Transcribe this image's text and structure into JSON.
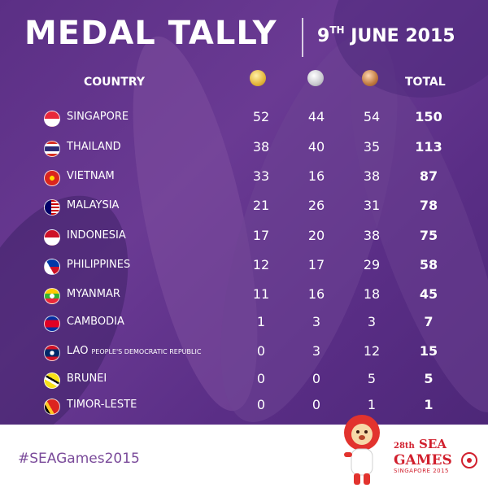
{
  "title": "MEDAL TALLY",
  "date": {
    "day": "9",
    "suffix": "TH",
    "rest": "JUNE 2015"
  },
  "headers": {
    "country": "COUNTRY",
    "total": "TOTAL"
  },
  "medal_icons": [
    "gold-medal-icon",
    "silver-medal-icon",
    "bronze-medal-icon"
  ],
  "colors": {
    "background": "#5b2f85",
    "accent": "#d1202e",
    "text": "#ffffff"
  },
  "rows": [
    {
      "country": "SINGAPORE",
      "gold": "52",
      "silver": "44",
      "bronze": "54",
      "total": "150",
      "flag": "singapore-flag-icon"
    },
    {
      "country": "THAILAND",
      "gold": "38",
      "silver": "40",
      "bronze": "35",
      "total": "113",
      "flag": "thailand-flag-icon"
    },
    {
      "country": "VIETNAM",
      "gold": "33",
      "silver": "16",
      "bronze": "38",
      "total": "87",
      "flag": "vietnam-flag-icon"
    },
    {
      "country": "MALAYSIA",
      "gold": "21",
      "silver": "26",
      "bronze": "31",
      "total": "78",
      "flag": "malaysia-flag-icon"
    },
    {
      "country": "INDONESIA",
      "gold": "17",
      "silver": "20",
      "bronze": "38",
      "total": "75",
      "flag": "indonesia-flag-icon"
    },
    {
      "country": "PHILIPPINES",
      "gold": "12",
      "silver": "17",
      "bronze": "29",
      "total": "58",
      "flag": "philippines-flag-icon"
    },
    {
      "country": "MYANMAR",
      "gold": "11",
      "silver": "16",
      "bronze": "18",
      "total": "45",
      "flag": "myanmar-flag-icon"
    },
    {
      "country": "CAMBODIA",
      "gold": "1",
      "silver": "3",
      "bronze": "3",
      "total": "7",
      "flag": "cambodia-flag-icon"
    },
    {
      "country": "LAO",
      "country_sub": "PEOPLE'S DEMOCRATIC REPUBLIC",
      "gold": "0",
      "silver": "3",
      "bronze": "12",
      "total": "15",
      "flag": "laos-flag-icon"
    },
    {
      "country": "BRUNEI",
      "gold": "0",
      "silver": "0",
      "bronze": "5",
      "total": "5",
      "flag": "brunei-flag-icon"
    },
    {
      "country": "TIMOR-LESTE",
      "gold": "0",
      "silver": "0",
      "bronze": "1",
      "total": "1",
      "flag": "timor-leste-flag-icon"
    }
  ],
  "hashtag": "#SEAGames2015",
  "logo": {
    "edition": "28th",
    "name_line1": "SEA",
    "name_line2": "GAMES",
    "subtitle": "SINGAPORE 2015"
  }
}
